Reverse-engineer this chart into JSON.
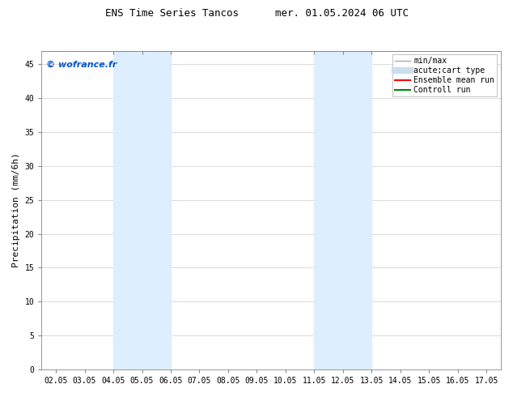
{
  "title": "ENS Time Series Tancos      mer. 01.05.2024 06 UTC",
  "ylabel": "Precipitation (mm/6h)",
  "xlim": [
    1.5,
    17.5
  ],
  "ylim": [
    0,
    47
  ],
  "yticks": [
    0,
    5,
    10,
    15,
    20,
    25,
    30,
    35,
    40,
    45
  ],
  "xtick_labels": [
    "02.05",
    "03.05",
    "04.05",
    "05.05",
    "06.05",
    "07.05",
    "08.05",
    "09.05",
    "10.05",
    "11.05",
    "12.05",
    "13.05",
    "14.05",
    "15.05",
    "16.05",
    "17.05"
  ],
  "xtick_positions": [
    2,
    3,
    4,
    5,
    6,
    7,
    8,
    9,
    10,
    11,
    12,
    13,
    14,
    15,
    16,
    17
  ],
  "shaded_regions": [
    {
      "xmin": 4.0,
      "xmax": 6.0,
      "color": "#ddeeff"
    },
    {
      "xmin": 11.0,
      "xmax": 13.0,
      "color": "#ddeeff"
    }
  ],
  "top_tick_positions": [
    4.0,
    5.0,
    6.0,
    11.0,
    12.0,
    13.0
  ],
  "watermark_text": "© wofrance.fr",
  "watermark_color": "#0055cc",
  "legend_entries": [
    {
      "label": "min/max",
      "color": "#aaaaaa",
      "linewidth": 1.0,
      "linestyle": "-",
      "type": "line"
    },
    {
      "label": "acute;cart type",
      "color": "#ccdded",
      "linewidth": 6,
      "linestyle": "-",
      "type": "line"
    },
    {
      "label": "Ensemble mean run",
      "color": "#ff0000",
      "linewidth": 1.5,
      "linestyle": "-",
      "type": "line"
    },
    {
      "label": "Controll run",
      "color": "#008800",
      "linewidth": 1.5,
      "linestyle": "-",
      "type": "line"
    }
  ],
  "background_color": "#ffffff",
  "title_fontsize": 9,
  "tick_fontsize": 7,
  "ylabel_fontsize": 8,
  "legend_fontsize": 7
}
